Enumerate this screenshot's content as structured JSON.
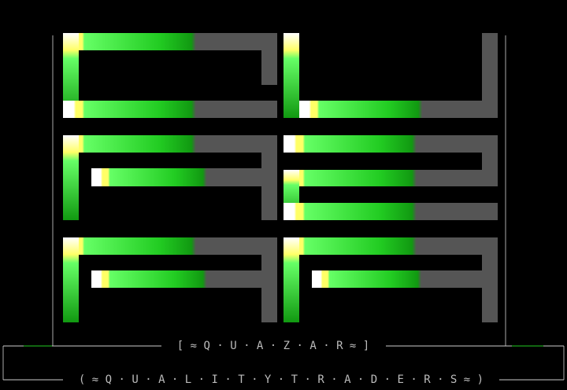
{
  "banner": {
    "group_name": "[ ≈ Q · U · A · Z · A · R ≈ ]",
    "motto": "( ≈ Q · U · A · L · I · T · Y · T · R · A · D · E · R · S ≈ )"
  }
}
